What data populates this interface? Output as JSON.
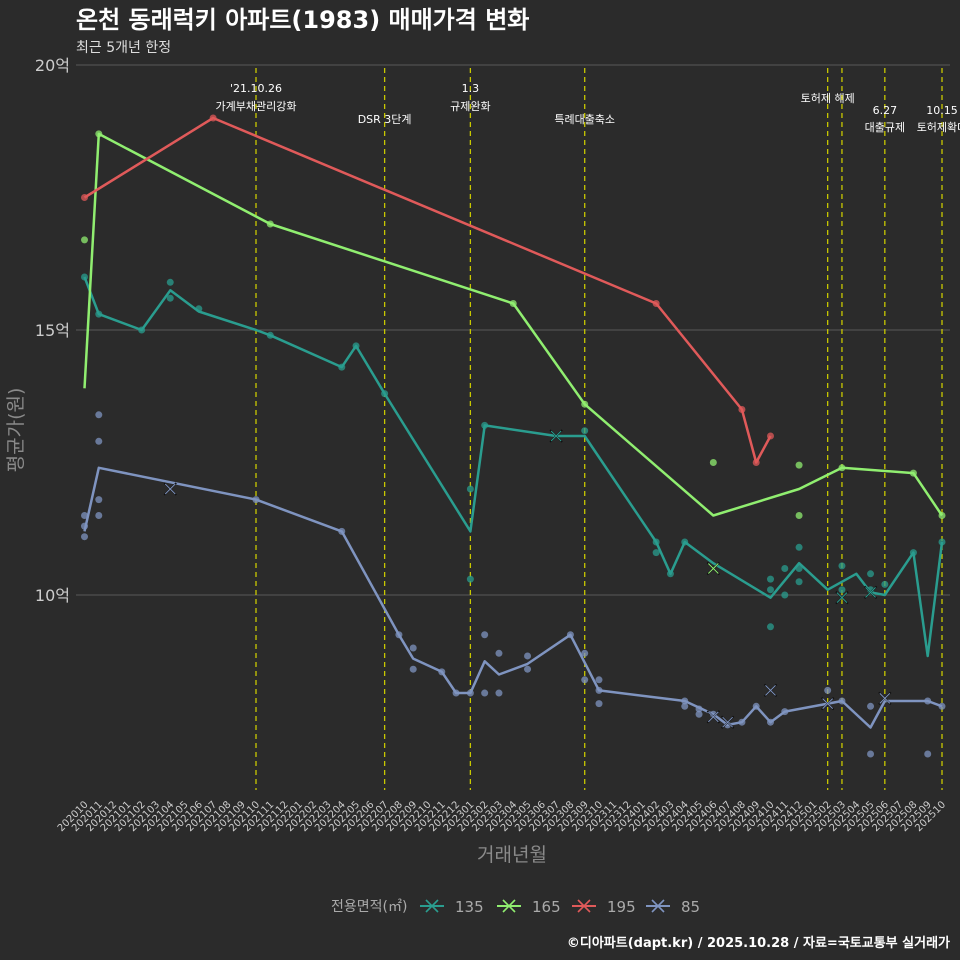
{
  "chart_data": {
    "type": "line",
    "title": "온천 동래럭키 아파트(1983) 매매가격 변화",
    "subtitle": "최근 5개년 한정",
    "xlabel": "거래년월",
    "ylabel": "평균가(원)",
    "caption": "©디아파트(dapt.kr) / 2025.10.28 / 자료=국토교통부 실거래가",
    "ylim": [
      6.2,
      20.3
    ],
    "y_ticks": [
      {
        "value": 10,
        "label": "10억"
      },
      {
        "value": 15,
        "label": "15억"
      },
      {
        "value": 20,
        "label": "20억"
      }
    ],
    "x_ticks": [
      "202010",
      "202011",
      "202012",
      "202101",
      "202102",
      "202103",
      "202104",
      "202105",
      "202106",
      "202107",
      "202108",
      "202109",
      "202110",
      "202111",
      "202112",
      "202201",
      "202202",
      "202203",
      "202204",
      "202205",
      "202206",
      "202207",
      "202208",
      "202209",
      "202210",
      "202211",
      "202212",
      "202301",
      "202302",
      "202303",
      "202304",
      "202305",
      "202306",
      "202307",
      "202308",
      "202309",
      "202310",
      "202311",
      "202312",
      "202401",
      "202402",
      "202403",
      "202404",
      "202405",
      "202406",
      "202407",
      "202408",
      "202409",
      "202410",
      "202411",
      "202412",
      "202501",
      "202502",
      "202503",
      "202504",
      "202505",
      "202506",
      "202507",
      "202508",
      "202509",
      "202510"
    ],
    "legend_title": "전용면적(㎡)",
    "events": [
      {
        "month": "202110",
        "line1": "'21.10.26",
        "line2": "가계부채관리강화"
      },
      {
        "month": "202207",
        "line1": "",
        "line2": "DSR 3단계"
      },
      {
        "month": "202301",
        "line1": "1.3",
        "line2": "규제완화"
      },
      {
        "month": "202309",
        "line1": "",
        "line2": "특례대출축소"
      },
      {
        "month": "202502",
        "line1": "",
        "line2": "토허제 해제"
      },
      {
        "month": "202503",
        "line1": "",
        "line2": ""
      },
      {
        "month": "202506",
        "line1": "6.27",
        "line2": "대출규제"
      },
      {
        "month": "202510",
        "line1": "10.15",
        "line2": "토허제확대"
      }
    ],
    "series": [
      {
        "name": "135",
        "color": "#2a9d8f",
        "line": [
          [
            "202010",
            16.0
          ],
          [
            "202011",
            15.3
          ],
          [
            "202102",
            15.0
          ],
          [
            "202104",
            15.75
          ],
          [
            "202106",
            15.35
          ],
          [
            "202110",
            15.0
          ],
          [
            "202111",
            14.9
          ],
          [
            "202204",
            14.3
          ],
          [
            "202205",
            14.7
          ],
          [
            "202207",
            13.8
          ],
          [
            "202301",
            11.2
          ],
          [
            "202302",
            13.2
          ],
          [
            "202307",
            13.0
          ],
          [
            "202309",
            13.0
          ],
          [
            "202402",
            11.0
          ],
          [
            "202403",
            10.4
          ],
          [
            "202404",
            11.0
          ],
          [
            "202406",
            10.6
          ],
          [
            "202410",
            9.95
          ],
          [
            "202412",
            10.6
          ],
          [
            "202502",
            10.1
          ],
          [
            "202504",
            10.4
          ],
          [
            "202505",
            10.05
          ],
          [
            "202506",
            10.0
          ],
          [
            "202508",
            10.8
          ],
          [
            "202509",
            8.85
          ],
          [
            "202510",
            11.0
          ]
        ],
        "points": [
          [
            "202010",
            16.0
          ],
          [
            "202011",
            15.3
          ],
          [
            "202102",
            15.0
          ],
          [
            "202104",
            15.9
          ],
          [
            "202104",
            15.6
          ],
          [
            "202106",
            15.4
          ],
          [
            "202111",
            14.9
          ],
          [
            "202204",
            14.3
          ],
          [
            "202205",
            14.7
          ],
          [
            "202207",
            13.8
          ],
          [
            "202301",
            12.0
          ],
          [
            "202301",
            10.3
          ],
          [
            "202302",
            13.2
          ],
          [
            "202309",
            13.1
          ],
          [
            "202402",
            11.0
          ],
          [
            "202402",
            10.8
          ],
          [
            "202403",
            10.4
          ],
          [
            "202404",
            11.0
          ],
          [
            "202410",
            10.3
          ],
          [
            "202410",
            10.1
          ],
          [
            "202410",
            9.4
          ],
          [
            "202411",
            10.5
          ],
          [
            "202411",
            10.0
          ],
          [
            "202412",
            10.9
          ],
          [
            "202412",
            10.5
          ],
          [
            "202412",
            10.25
          ],
          [
            "202503",
            10.55
          ],
          [
            "202503",
            10.1
          ],
          [
            "202505",
            10.4
          ],
          [
            "202505",
            10.1
          ],
          [
            "202506",
            10.2
          ],
          [
            "202508",
            10.8
          ],
          [
            "202510",
            11.0
          ]
        ],
        "crosses": [
          [
            "202307",
            13.0
          ],
          [
            "202503",
            9.95
          ],
          [
            "202505",
            10.05
          ]
        ]
      },
      {
        "name": "165",
        "color": "#90ee70",
        "line": [
          [
            "202010",
            13.9
          ],
          [
            "202011",
            18.7
          ],
          [
            "202111",
            17.0
          ],
          [
            "202304",
            15.5
          ],
          [
            "202309",
            13.6
          ],
          [
            "202406",
            11.5
          ],
          [
            "202412",
            12.0
          ],
          [
            "202503",
            12.4
          ],
          [
            "202508",
            12.3
          ],
          [
            "202510",
            11.5
          ]
        ],
        "points": [
          [
            "202010",
            16.7
          ],
          [
            "202011",
            18.7
          ],
          [
            "202111",
            17.0
          ],
          [
            "202304",
            15.5
          ],
          [
            "202309",
            13.6
          ],
          [
            "202406",
            12.5
          ],
          [
            "202412",
            12.45
          ],
          [
            "202412",
            11.5
          ],
          [
            "202503",
            12.4
          ],
          [
            "202508",
            12.3
          ],
          [
            "202510",
            11.5
          ]
        ],
        "crosses": [
          [
            "202406",
            10.5
          ]
        ]
      },
      {
        "name": "195",
        "color": "#e05a5a",
        "line": [
          [
            "202010",
            17.5
          ],
          [
            "202107",
            19.0
          ],
          [
            "202402",
            15.5
          ],
          [
            "202408",
            13.5
          ],
          [
            "202409",
            12.5
          ],
          [
            "202410",
            13.0
          ]
        ],
        "points": [
          [
            "202010",
            17.5
          ],
          [
            "202107",
            19.0
          ],
          [
            "202402",
            15.5
          ],
          [
            "202408",
            13.5
          ],
          [
            "202409",
            12.5
          ],
          [
            "202410",
            13.0
          ]
        ],
        "crosses": []
      },
      {
        "name": "85",
        "color": "#7f94c0",
        "line": [
          [
            "202010",
            11.2
          ],
          [
            "202011",
            12.4
          ],
          [
            "202110",
            11.8
          ],
          [
            "202204",
            11.2
          ],
          [
            "202208",
            9.25
          ],
          [
            "202209",
            8.8
          ],
          [
            "202211",
            8.55
          ],
          [
            "202212",
            8.15
          ],
          [
            "202301",
            8.15
          ],
          [
            "202302",
            8.75
          ],
          [
            "202303",
            8.5
          ],
          [
            "202305",
            8.7
          ],
          [
            "202308",
            9.25
          ],
          [
            "202310",
            8.2
          ],
          [
            "202404",
            8.0
          ],
          [
            "202406",
            7.75
          ],
          [
            "202407",
            7.55
          ],
          [
            "202408",
            7.6
          ],
          [
            "202409",
            7.9
          ],
          [
            "202410",
            7.6
          ],
          [
            "202411",
            7.8
          ],
          [
            "202503",
            8.0
          ],
          [
            "202505",
            7.5
          ],
          [
            "202506",
            8.0
          ],
          [
            "202509",
            8.0
          ],
          [
            "202510",
            7.9
          ]
        ],
        "points": [
          [
            "202010",
            11.5
          ],
          [
            "202010",
            11.3
          ],
          [
            "202010",
            11.1
          ],
          [
            "202011",
            13.4
          ],
          [
            "202011",
            12.9
          ],
          [
            "202011",
            11.8
          ],
          [
            "202011",
            11.5
          ],
          [
            "202110",
            11.8
          ],
          [
            "202204",
            11.2
          ],
          [
            "202208",
            9.25
          ],
          [
            "202209",
            9.0
          ],
          [
            "202209",
            8.6
          ],
          [
            "202211",
            8.55
          ],
          [
            "202212",
            8.15
          ],
          [
            "202301",
            8.15
          ],
          [
            "202302",
            9.25
          ],
          [
            "202302",
            8.15
          ],
          [
            "202303",
            8.9
          ],
          [
            "202303",
            8.15
          ],
          [
            "202305",
            8.85
          ],
          [
            "202305",
            8.6
          ],
          [
            "202308",
            9.25
          ],
          [
            "202309",
            8.9
          ],
          [
            "202309",
            8.4
          ],
          [
            "202310",
            8.4
          ],
          [
            "202310",
            8.2
          ],
          [
            "202310",
            7.95
          ],
          [
            "202404",
            8.0
          ],
          [
            "202404",
            7.9
          ],
          [
            "202405",
            7.85
          ],
          [
            "202405",
            7.75
          ],
          [
            "202406",
            7.75
          ],
          [
            "202407",
            7.55
          ],
          [
            "202408",
            7.6
          ],
          [
            "202409",
            7.9
          ],
          [
            "202410",
            7.6
          ],
          [
            "202411",
            7.8
          ],
          [
            "202502",
            8.2
          ],
          [
            "202503",
            8.0
          ],
          [
            "202505",
            7.9
          ],
          [
            "202505",
            7.0
          ],
          [
            "202509",
            8.0
          ],
          [
            "202509",
            7.0
          ],
          [
            "202510",
            7.9
          ]
        ],
        "crosses": [
          [
            "202104",
            12.0
          ],
          [
            "202406",
            7.7
          ],
          [
            "202407",
            7.6
          ],
          [
            "202410",
            8.2
          ],
          [
            "202502",
            7.95
          ],
          [
            "202506",
            8.05
          ]
        ]
      }
    ]
  }
}
